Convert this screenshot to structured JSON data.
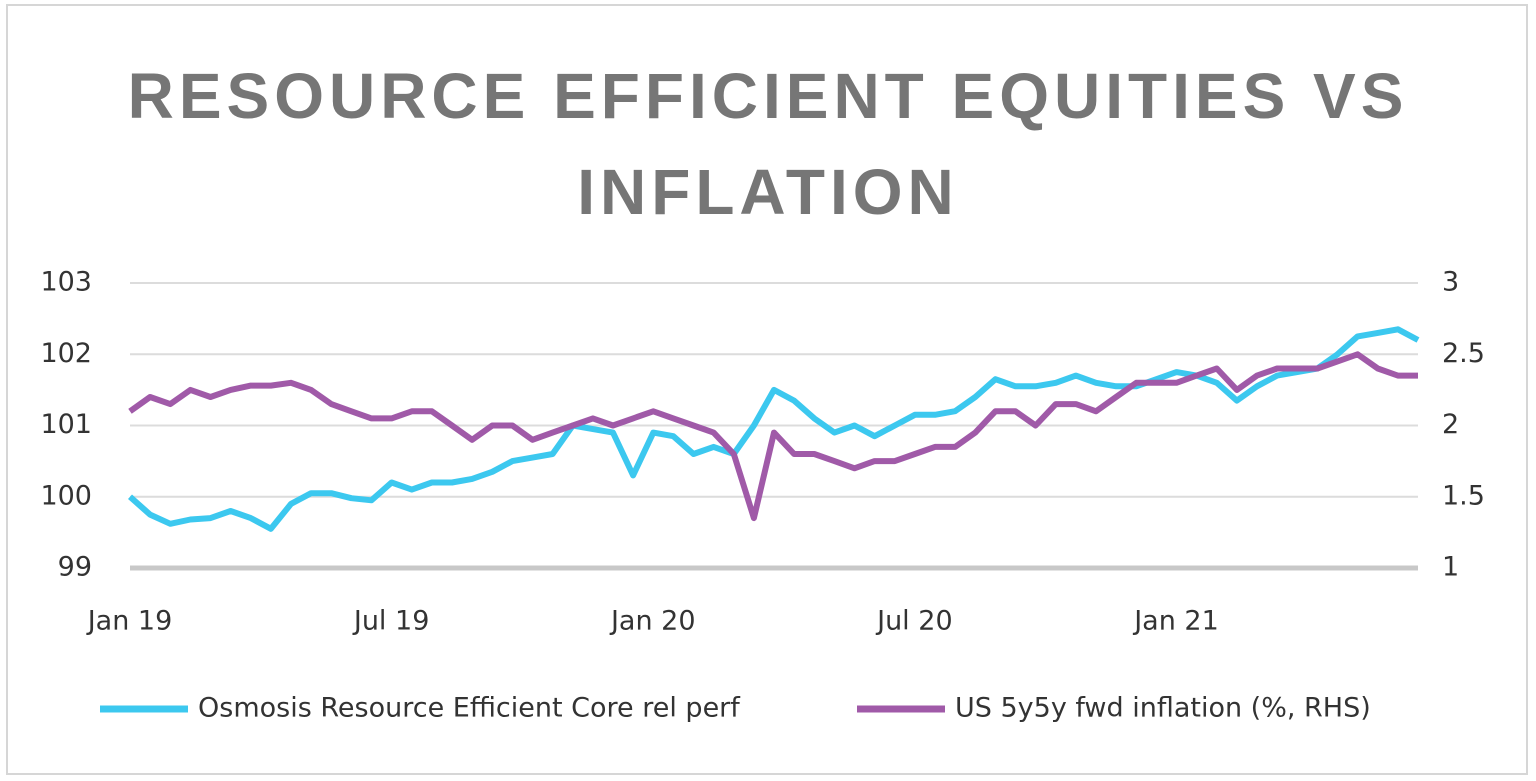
{
  "chart_data": {
    "type": "line",
    "title": "RESOURCE EFFICIENT EQUITIES VS INFLATION",
    "categories": [
      "Jan 19",
      null,
      null,
      null,
      null,
      null,
      null,
      null,
      null,
      null,
      null,
      null,
      null,
      "Jul 19",
      null,
      null,
      null,
      null,
      null,
      null,
      null,
      null,
      null,
      null,
      null,
      null,
      "Jan 20",
      null,
      null,
      null,
      null,
      null,
      null,
      null,
      null,
      null,
      null,
      null,
      null,
      "Jul 20",
      null,
      null,
      null,
      null,
      null,
      null,
      null,
      null,
      null,
      null,
      null,
      null,
      "Jan 21",
      null,
      null,
      null,
      null,
      null,
      null,
      null,
      null,
      null,
      null,
      null,
      null
    ],
    "series": [
      {
        "name": "Osmosis Resource Efficient Core rel perf",
        "color": "#3cc8ef",
        "axis": "y",
        "values": [
          100.0,
          99.75,
          99.62,
          99.68,
          99.7,
          99.8,
          99.7,
          99.55,
          99.9,
          100.05,
          100.05,
          99.98,
          99.95,
          100.2,
          100.1,
          100.2,
          100.2,
          100.25,
          100.35,
          100.5,
          100.55,
          100.6,
          101.0,
          100.95,
          100.9,
          100.3,
          100.9,
          100.85,
          100.6,
          100.7,
          100.6,
          101.0,
          101.5,
          101.35,
          101.1,
          100.9,
          101.0,
          100.85,
          101.0,
          101.15,
          101.15,
          101.2,
          101.4,
          101.65,
          101.55,
          101.55,
          101.6,
          101.7,
          101.6,
          101.55,
          101.55,
          101.65,
          101.75,
          101.7,
          101.6,
          101.35,
          101.55,
          101.7,
          101.75,
          101.8,
          102.0,
          102.25,
          102.3,
          102.35,
          102.2
        ]
      },
      {
        "name": "US 5y5y fwd inflation (%, RHS)",
        "color": "#a05aa8",
        "axis": "y2",
        "values": [
          2.1,
          2.2,
          2.15,
          2.25,
          2.2,
          2.25,
          2.28,
          2.28,
          2.3,
          2.25,
          2.15,
          2.1,
          2.05,
          2.05,
          2.1,
          2.1,
          2.0,
          1.9,
          2.0,
          2.0,
          1.9,
          1.95,
          2.0,
          2.05,
          2.0,
          2.05,
          2.1,
          2.05,
          2.0,
          1.95,
          1.8,
          1.35,
          1.95,
          1.8,
          1.8,
          1.75,
          1.7,
          1.75,
          1.75,
          1.8,
          1.85,
          1.85,
          1.95,
          2.1,
          2.1,
          2.0,
          2.15,
          2.15,
          2.1,
          2.2,
          2.3,
          2.3,
          2.3,
          2.35,
          2.4,
          2.25,
          2.35,
          2.4,
          2.4,
          2.4,
          2.45,
          2.5,
          2.4,
          2.35,
          2.35
        ]
      }
    ],
    "ylim": [
      99,
      103
    ],
    "yticks": [
      99,
      100,
      101,
      102,
      103
    ],
    "y2lim": [
      1,
      3
    ],
    "y2ticks": [
      1,
      1.5,
      2,
      2.5,
      3
    ],
    "grid": true,
    "legend": "bottom"
  }
}
